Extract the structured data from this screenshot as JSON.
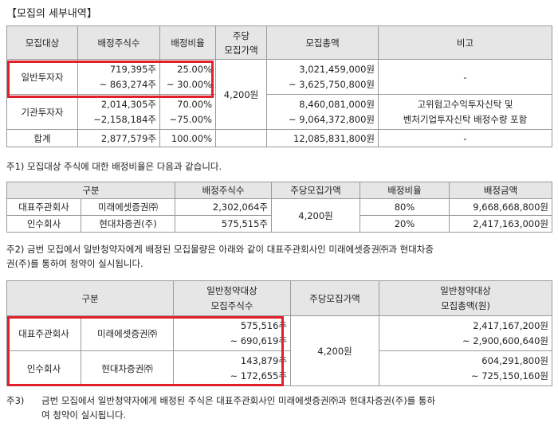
{
  "title": "【모집의 세부내역】",
  "table1": {
    "headers": [
      "모집대상",
      "배정주식수",
      "배정비율",
      "주당\n모집가액",
      "모집총액",
      "비고"
    ],
    "price": "4,200원",
    "rows": [
      {
        "target": "일반투자자",
        "shares_min": "719,395주",
        "shares_max": "~ 863,274주",
        "ratio_min": "25.00%",
        "ratio_max": "~ 30.00%",
        "total_min": "3,021,459,000원",
        "total_max": "~ 3,625,750,800원",
        "note1": "-",
        "note2": ""
      },
      {
        "target": "기관투자자",
        "shares_min": "2,014,305주",
        "shares_max": "~2,158,184주",
        "ratio_min": "70.00%",
        "ratio_max": "~75.00%",
        "total_min": "8,460,081,000원",
        "total_max": "~ 9,064,372,800원",
        "note1": "고위험고수익투자신탁 및",
        "note2": "벤처기업투자신탁 배정수량 포함"
      },
      {
        "target": "합계",
        "shares": "2,877,579주",
        "ratio": "100.00%",
        "total": "12,085,831,800원",
        "note": "-"
      }
    ]
  },
  "note1": "주1) 모집대상 주식에 대한 배정비율은 다음과 같습니다.",
  "table2": {
    "headers": [
      "구분",
      "배정주식수",
      "주당모집가액",
      "배정비율",
      "배정금액"
    ],
    "price": "4,200원",
    "rows": [
      {
        "role": "대표주관회사",
        "firm": "미래에셋증권㈜",
        "shares": "2,302,064주",
        "ratio": "80%",
        "amount": "9,668,668,800원"
      },
      {
        "role": "인수회사",
        "firm": "현대차증권(주)",
        "shares": "575,515주",
        "ratio": "20%",
        "amount": "2,417,163,000원"
      }
    ]
  },
  "note2_line1": "주2) 금번 모집에서 일반청약자에게 배정된 모집물량은 아래와 같이 대표주관회사인 미래에셋증권㈜과 현대차증",
  "note2_line2": "권(주)를 통하여 청약이 실시됩니다.",
  "table3": {
    "header_role": "구분",
    "header_shares_1": "일반청약대상",
    "header_shares_2": "모집주식수",
    "header_price": "주당모집가액",
    "header_total_1": "일반청약대상",
    "header_total_2": "모집총액(원)",
    "price": "4,200원",
    "rows": [
      {
        "role": "대표주관회사",
        "firm": "미래에셋증권㈜",
        "shares_min": "575,516주",
        "shares_max": "~ 690,619주",
        "total_min": "2,417,167,200원",
        "total_max": "~ 2,900,600,640원"
      },
      {
        "role": "인수회사",
        "firm": "현대차증권㈜",
        "shares_min": "143,879주",
        "shares_max": "~ 172,655주",
        "total_min": "604,291,800원",
        "total_max": "~ 725,150,160원"
      }
    ]
  },
  "note3_label": "주3)",
  "note3_line1": "금번 모집에서 일반청약자에게 배정된 주식은 대표주관회사인 미래에셋증권㈜과 현대차증권(주)를 통하",
  "note3_line2": "여 청약이 실시됩니다."
}
